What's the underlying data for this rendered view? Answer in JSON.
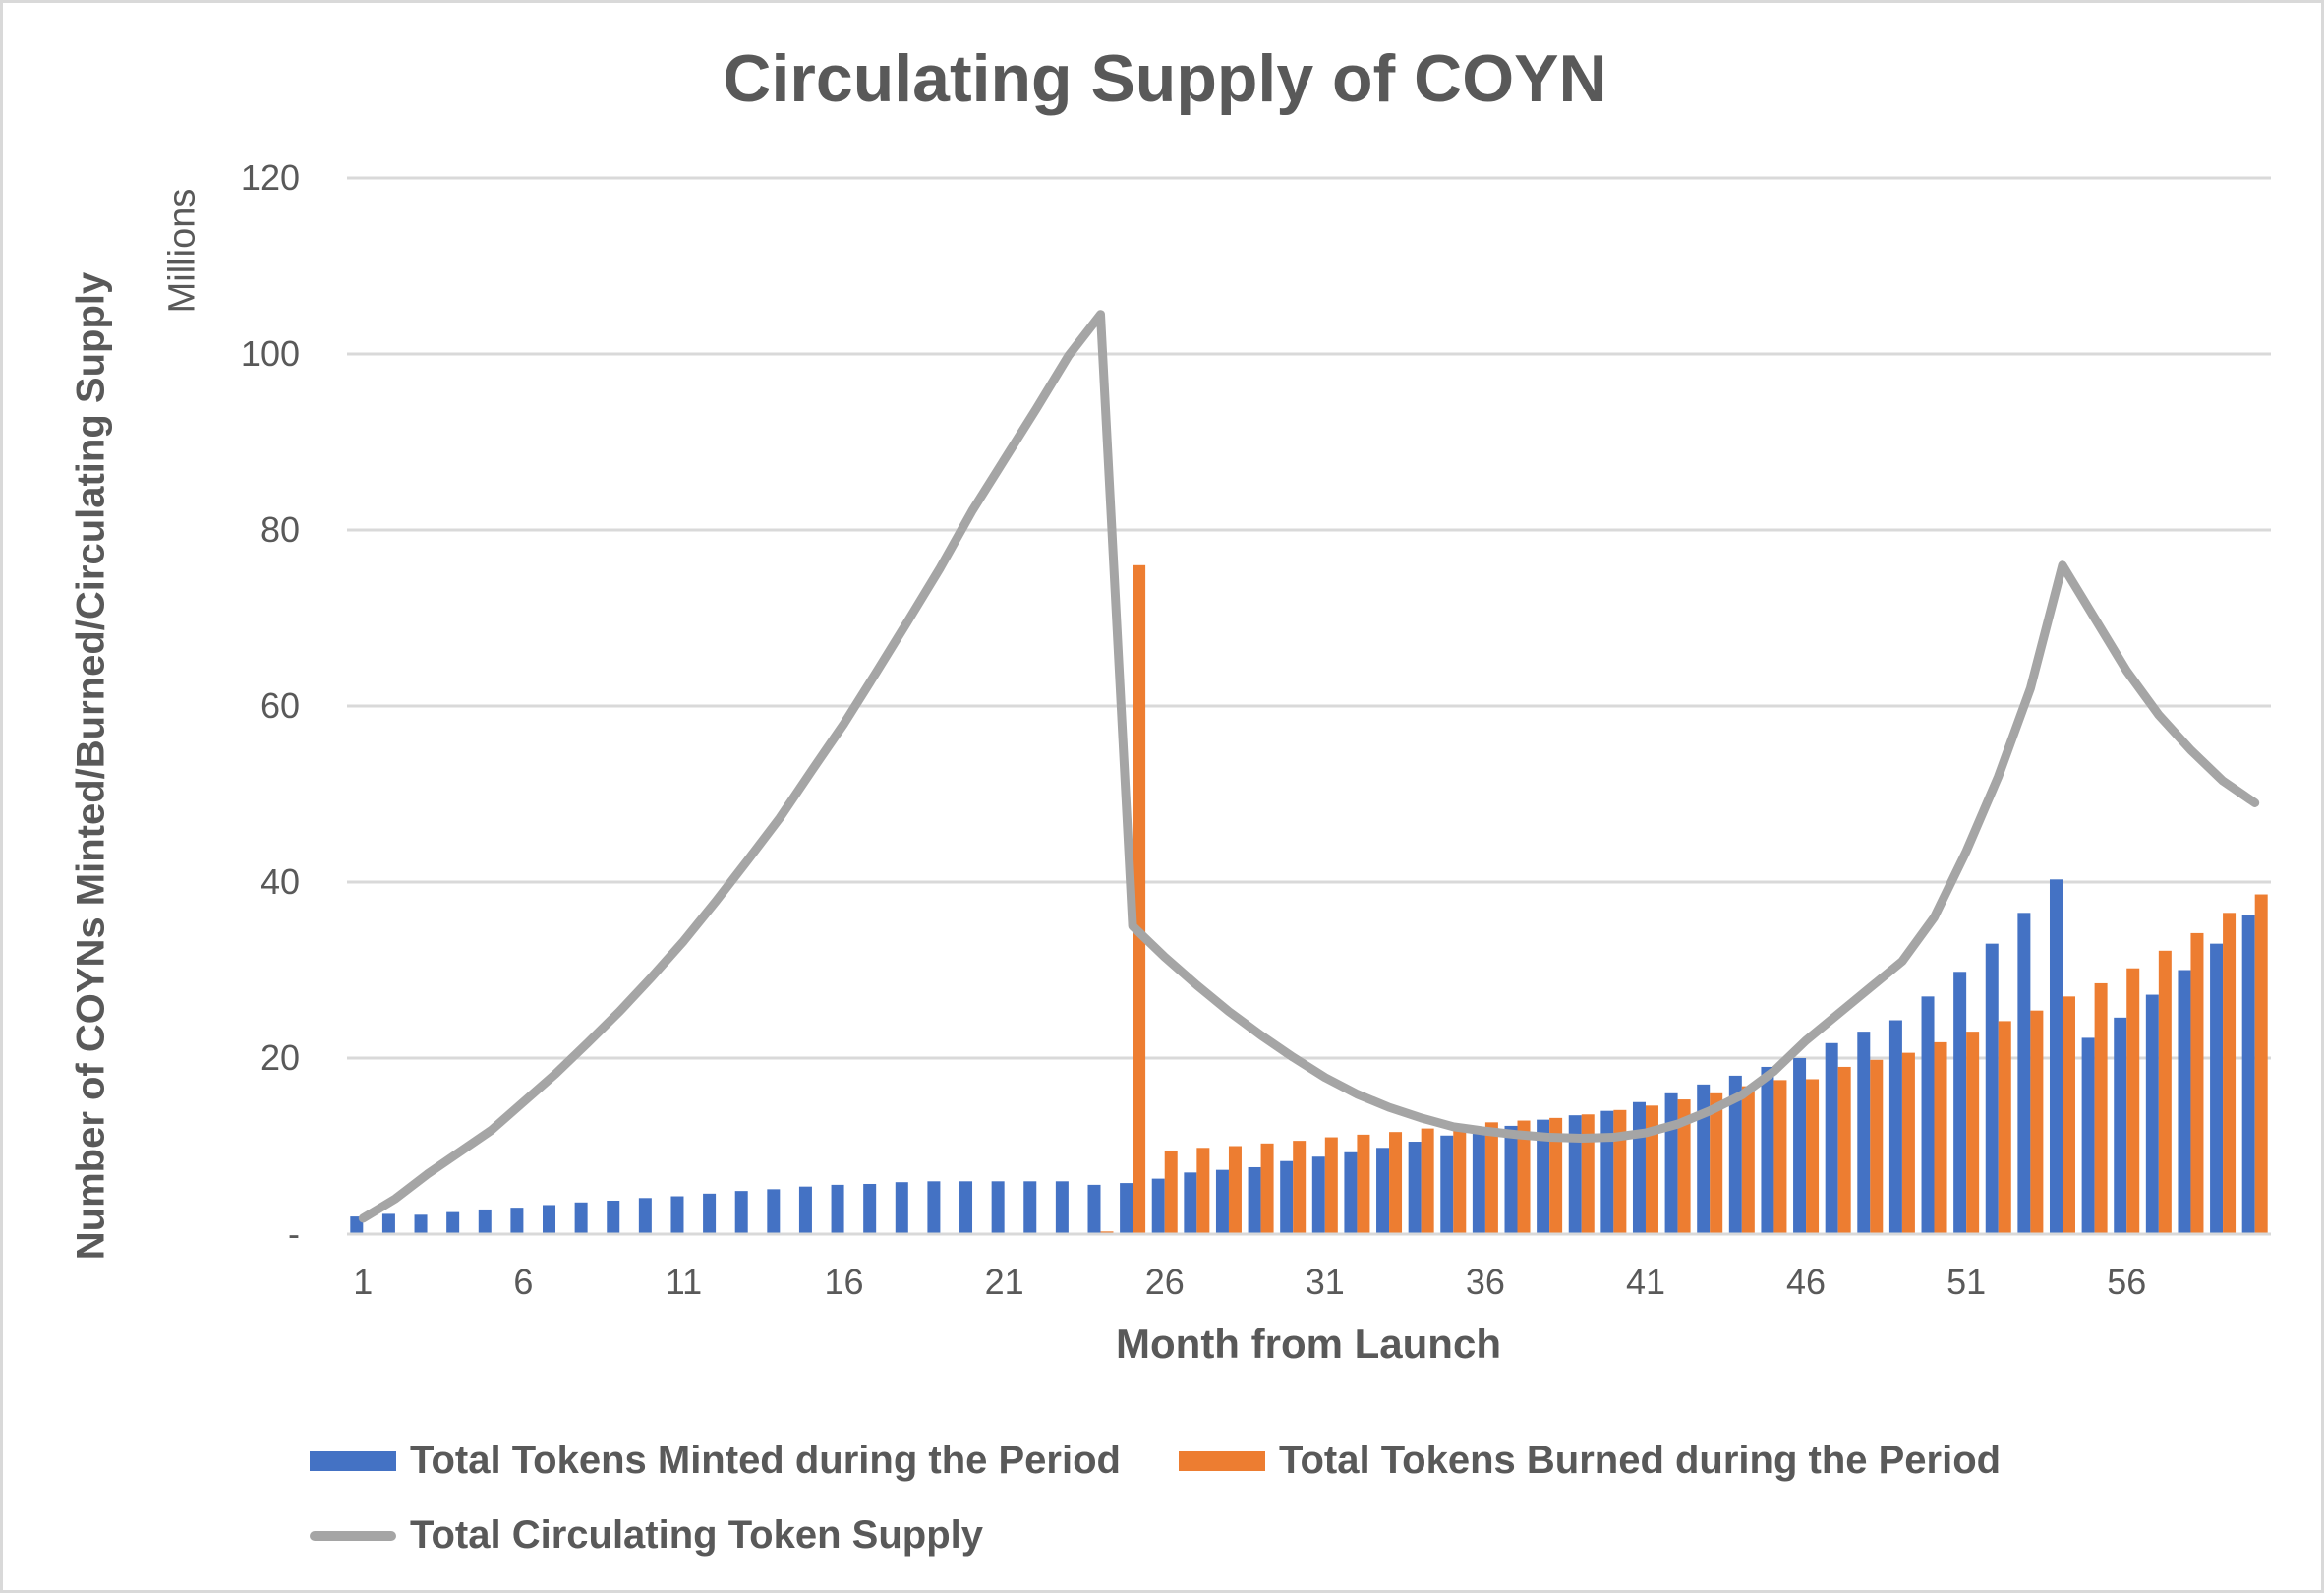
{
  "chart_data": {
    "type": "bar",
    "title": "Circulating Supply of COYN",
    "xlabel": "Month from Launch",
    "ylabel": "Number of COYNs Minted/Burned/Circulating Supply",
    "yunit": "Millions",
    "ylim": [
      0,
      120
    ],
    "yticks": [
      0,
      20,
      40,
      60,
      80,
      100,
      120
    ],
    "ytick_labels": [
      "-",
      "20",
      "40",
      "60",
      "80",
      "100",
      "120"
    ],
    "x": [
      1,
      2,
      3,
      4,
      5,
      6,
      7,
      8,
      9,
      10,
      11,
      12,
      13,
      14,
      15,
      16,
      17,
      18,
      19,
      20,
      21,
      22,
      23,
      24,
      25,
      26,
      27,
      28,
      29,
      30,
      31,
      32,
      33,
      34,
      35,
      36,
      37,
      38,
      39,
      40,
      41,
      42,
      43,
      44,
      45,
      46,
      47,
      48,
      49,
      50,
      51,
      52,
      53,
      54,
      55,
      56,
      57,
      58,
      59,
      60
    ],
    "xtick_labels": [
      "1",
      "6",
      "11",
      "16",
      "21",
      "26",
      "31",
      "36",
      "41",
      "46",
      "51",
      "56"
    ],
    "grid": true,
    "legend_position": "bottom",
    "series": [
      {
        "name": "Total Tokens Minted during the Period",
        "type": "bar",
        "color": "#4472C4",
        "values": [
          2.0,
          2.3,
          2.2,
          2.5,
          2.8,
          3.0,
          3.3,
          3.6,
          3.8,
          4.1,
          4.3,
          4.6,
          4.9,
          5.1,
          5.4,
          5.6,
          5.7,
          5.9,
          6.0,
          6.0,
          6.0,
          6.0,
          6.0,
          5.6,
          5.8,
          6.3,
          7.0,
          7.3,
          7.6,
          8.3,
          8.8,
          9.3,
          9.8,
          10.5,
          11.2,
          11.8,
          12.3,
          13.0,
          13.5,
          14.0,
          15.0,
          16.0,
          17.0,
          18.0,
          19.0,
          20.0,
          21.7,
          23.0,
          24.3,
          27.0,
          29.8,
          33.0,
          36.5,
          40.3,
          22.3,
          24.6,
          27.2,
          30.0,
          33.0,
          36.2
        ]
      },
      {
        "name": "Total Tokens Burned during the Period",
        "type": "bar",
        "color": "#ED7D31",
        "values": [
          0,
          0,
          0,
          0,
          0,
          0,
          0,
          0,
          0,
          0,
          0,
          0,
          0,
          0,
          0,
          0,
          0,
          0,
          0,
          0,
          0,
          0,
          0,
          0.3,
          76.0,
          9.5,
          9.8,
          10.0,
          10.3,
          10.6,
          11.0,
          11.3,
          11.6,
          12.0,
          12.3,
          12.7,
          12.9,
          13.2,
          13.6,
          14.1,
          14.6,
          15.3,
          16.0,
          16.8,
          17.5,
          17.6,
          19.0,
          19.8,
          20.6,
          21.8,
          23.0,
          24.2,
          25.4,
          27.0,
          28.5,
          30.2,
          32.2,
          34.2,
          36.5,
          38.6
        ]
      },
      {
        "name": "Total Circulating Token Supply",
        "type": "line",
        "color": "#A5A5A5",
        "values": [
          1.8,
          4.0,
          6.8,
          9.3,
          11.8,
          15.0,
          18.2,
          21.7,
          25.3,
          29.2,
          33.3,
          37.8,
          42.5,
          47.3,
          52.7,
          58.0,
          63.8,
          69.7,
          75.7,
          82.2,
          88.0,
          93.8,
          99.8,
          104.5,
          35.0,
          31.5,
          28.3,
          25.3,
          22.6,
          20.1,
          17.8,
          15.9,
          14.4,
          13.2,
          12.2,
          11.7,
          11.3,
          11.0,
          10.9,
          11.0,
          11.5,
          12.5,
          14.0,
          15.8,
          18.5,
          22.0,
          25.0,
          28.0,
          31.0,
          36.0,
          43.5,
          52.0,
          62.0,
          76.0,
          70.0,
          64.0,
          59.0,
          55.0,
          51.5,
          49.0
        ]
      }
    ]
  }
}
